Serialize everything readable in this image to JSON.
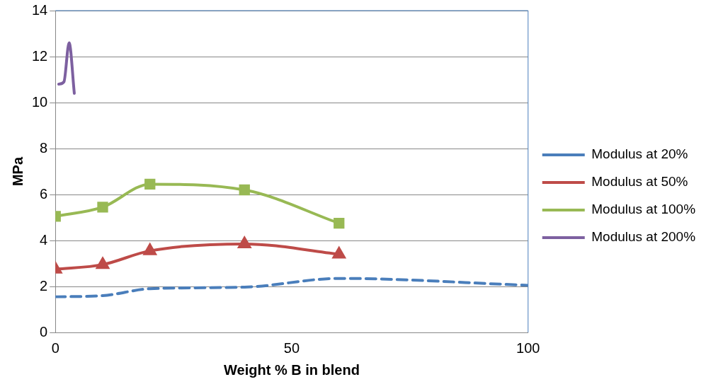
{
  "chart_data": {
    "type": "line",
    "xlabel": "Weight % B in blend",
    "ylabel": "MPa",
    "xlim": [
      0,
      100
    ],
    "xticks": [
      0,
      50,
      100
    ],
    "ylim": [
      0,
      14
    ],
    "yticks": [
      0,
      2,
      4,
      6,
      8,
      10,
      12,
      14
    ],
    "grid": "y",
    "legend": "right",
    "series": [
      {
        "name": "Modulus at 20%",
        "color": "#4a7ebb",
        "line_style": "dashed",
        "marker": "none",
        "x": [
          0,
          10,
          20,
          40,
          60,
          100
        ],
        "values": [
          1.55,
          1.6,
          1.9,
          1.97,
          2.35,
          2.05
        ]
      },
      {
        "name": "Modulus at 50%",
        "color": "#be4b48",
        "line_style": "solid",
        "marker": "triangle",
        "x": [
          0,
          10,
          20,
          40,
          60
        ],
        "values": [
          2.75,
          2.95,
          3.55,
          3.85,
          3.4
        ]
      },
      {
        "name": "Modulus at 100%",
        "color": "#98b954",
        "line_style": "solid",
        "marker": "square",
        "x": [
          0,
          10,
          20,
          40,
          60
        ],
        "values": [
          5.05,
          5.45,
          6.45,
          6.2,
          4.75
        ]
      },
      {
        "name": "Modulus at 200%",
        "color": "#7d60a0",
        "line_style": "solid",
        "marker": "none",
        "x": [
          0.7,
          1.8,
          2.9,
          4.0
        ],
        "values": [
          10.8,
          10.9,
          12.6,
          10.4
        ]
      }
    ]
  }
}
